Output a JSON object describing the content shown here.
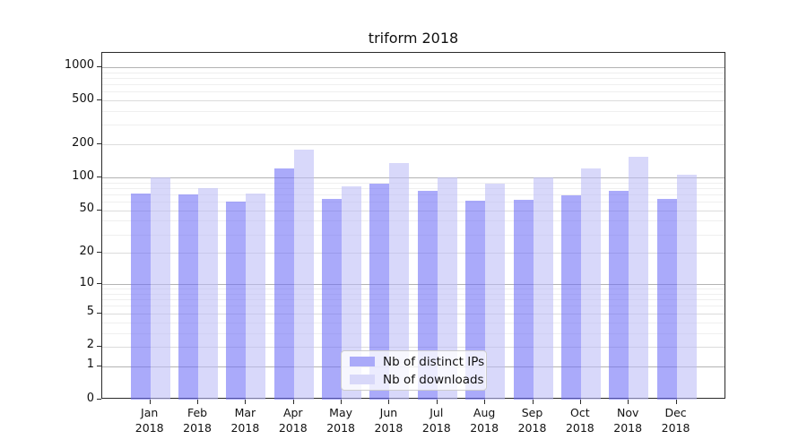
{
  "title": "triform 2018",
  "colors": {
    "bar_ips": "rgba(108,108,246,0.58)",
    "bar_downloads": "rgba(188,188,247,0.58)",
    "legend_swatch_ips": "#aaaaf9",
    "legend_swatch_downloads": "#d8d8f9",
    "grid_major": "#b3b3b3",
    "grid_sub": "#dcdcdc",
    "grid_minor": "#efefef",
    "spine": "#2a2a2a",
    "text": "#111111"
  },
  "legend": {
    "items": [
      {
        "label": "Nb of distinct IPs",
        "series": "ips"
      },
      {
        "label": "Nb of downloads",
        "series": "downloads"
      }
    ]
  },
  "chart_data": {
    "type": "bar",
    "title": "triform 2018",
    "categories": [
      "Jan 2018",
      "Feb 2018",
      "Mar 2018",
      "Apr 2018",
      "May 2018",
      "Jun 2018",
      "Jul 2018",
      "Aug 2018",
      "Sep 2018",
      "Oct 2018",
      "Nov 2018",
      "Dec 2018"
    ],
    "series": [
      {
        "name": "Nb of distinct IPs",
        "color_key": "bar_ips",
        "values": [
          71,
          70,
          60,
          120,
          64,
          88,
          75,
          61,
          62,
          69,
          75,
          64
        ]
      },
      {
        "name": "Nb of downloads",
        "color_key": "bar_downloads",
        "values": [
          100,
          80,
          72,
          180,
          83,
          135,
          100,
          87,
          100,
          120,
          155,
          105
        ]
      }
    ],
    "yscale": "log1p",
    "yticks": [
      0,
      1,
      2,
      5,
      10,
      20,
      50,
      100,
      200,
      500,
      1000
    ],
    "y_minor_tick_bases": [
      3,
      4,
      6,
      7,
      8,
      9
    ],
    "ylim": [
      0,
      1340
    ],
    "grid": "horizontal",
    "legend_position": "lower center"
  }
}
